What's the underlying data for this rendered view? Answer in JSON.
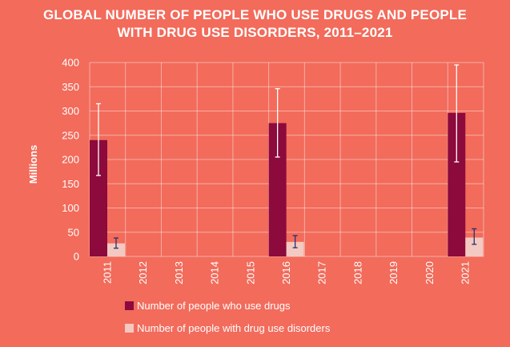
{
  "chart_data": {
    "type": "bar",
    "title_line1": "GLOBAL NUMBER OF PEOPLE WHO USE DRUGS AND PEOPLE",
    "title_line2": "WITH DRUG USE DISORDERS, 2011–2021",
    "ylabel": "Millions",
    "xlabel": "",
    "ylim": [
      0,
      400
    ],
    "yticks": [
      0,
      50,
      100,
      150,
      200,
      250,
      300,
      350,
      400
    ],
    "grid": true,
    "categories": [
      "2011",
      "2012",
      "2013",
      "2014",
      "2015",
      "2016",
      "2017",
      "2018",
      "2019",
      "2020",
      "2021"
    ],
    "series": [
      {
        "name": "Number of people who use drugs",
        "color": "#8c0a3c",
        "values": [
          240,
          null,
          null,
          null,
          null,
          275,
          null,
          null,
          null,
          null,
          296
        ],
        "error_low": [
          167,
          null,
          null,
          null,
          null,
          205,
          null,
          null,
          null,
          null,
          195
        ],
        "error_high": [
          315,
          null,
          null,
          null,
          null,
          346,
          null,
          null,
          null,
          null,
          395
        ],
        "error_color": "#ffffff"
      },
      {
        "name": "Number of people with drug use disorders",
        "color": "#f3c9c1",
        "values": [
          27,
          null,
          null,
          null,
          null,
          30,
          null,
          null,
          null,
          null,
          39
        ],
        "error_low": [
          17,
          null,
          null,
          null,
          null,
          18,
          null,
          null,
          null,
          null,
          25
        ],
        "error_high": [
          38,
          null,
          null,
          null,
          null,
          43,
          null,
          null,
          null,
          null,
          57
        ],
        "error_color": "#2b2f6b"
      }
    ],
    "legend_position": "bottom-left"
  }
}
